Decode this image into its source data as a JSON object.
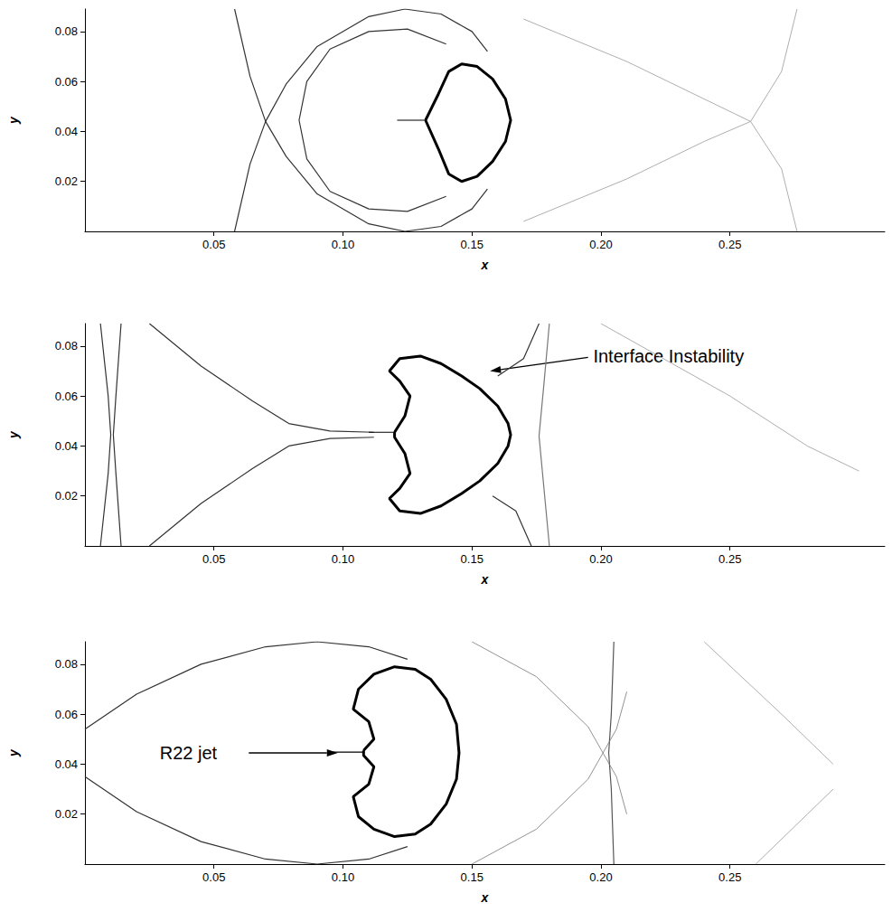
{
  "chart_data": [
    {
      "type": "line",
      "xlabel": "x",
      "ylabel": "y",
      "grid": false,
      "xlim": [
        0,
        0.31
      ],
      "ylim": [
        0,
        0.089
      ],
      "xticks": [
        0.05,
        {
          "value": 0.1,
          "label": "0.10"
        },
        0.15,
        {
          "value": 0.2,
          "label": "0.20"
        },
        0.25
      ],
      "yticks": [
        0.02,
        0.04,
        0.06,
        0.08
      ],
      "series": [
        {
          "color": "#333333",
          "line_style": "thin",
          "x": [
            0.058,
            0.064,
            0.07,
            0.078,
            0.09,
            0.11,
            0.124,
            0.138,
            0.15,
            0.156
          ],
          "values": [
            0.089,
            0.062,
            0.044,
            0.03,
            0.015,
            0.003,
            0.0,
            0.002,
            0.009,
            0.017
          ]
        },
        {
          "color": "#333333",
          "line_style": "thin",
          "x": [
            0.058,
            0.064,
            0.07,
            0.078,
            0.09,
            0.11,
            0.124,
            0.138,
            0.15,
            0.156
          ],
          "values": [
            0.0,
            0.027,
            0.044,
            0.059,
            0.074,
            0.086,
            0.089,
            0.087,
            0.08,
            0.072
          ]
        },
        {
          "color": "#333333",
          "line_style": "thin",
          "x": [
            0.14,
            0.125,
            0.11,
            0.095,
            0.086,
            0.083,
            0.086,
            0.095,
            0.11,
            0.125,
            0.14
          ],
          "values": [
            0.075,
            0.081,
            0.08,
            0.073,
            0.06,
            0.0445,
            0.029,
            0.016,
            0.009,
            0.008,
            0.014
          ]
        },
        {
          "color": "#000000",
          "line_style": "thick",
          "x": [
            0.132,
            0.137,
            0.141,
            0.146,
            0.152,
            0.158,
            0.163,
            0.165,
            0.163,
            0.158,
            0.152,
            0.146,
            0.141,
            0.137,
            0.132
          ],
          "values": [
            0.0445,
            0.055,
            0.064,
            0.067,
            0.066,
            0.061,
            0.053,
            0.0445,
            0.036,
            0.028,
            0.022,
            0.02,
            0.023,
            0.033,
            0.0445
          ]
        },
        {
          "color": "#000000",
          "line_style": "thin",
          "x": [
            0.121,
            0.132
          ],
          "values": [
            0.0445,
            0.0445
          ]
        },
        {
          "color": "#999999",
          "line_style": "faint",
          "x": [
            0.17,
            0.21,
            0.24,
            0.258,
            0.27,
            0.276
          ],
          "values": [
            0.085,
            0.068,
            0.053,
            0.044,
            0.025,
            0.0
          ]
        },
        {
          "color": "#999999",
          "line_style": "faint",
          "x": [
            0.17,
            0.21,
            0.24,
            0.258,
            0.27,
            0.276
          ],
          "values": [
            0.004,
            0.021,
            0.036,
            0.044,
            0.064,
            0.089
          ]
        }
      ],
      "annotations": []
    },
    {
      "type": "line",
      "xlabel": "x",
      "ylabel": "y",
      "grid": false,
      "xlim": [
        0,
        0.31
      ],
      "ylim": [
        0,
        0.089
      ],
      "xticks": [
        0.05,
        {
          "value": 0.1,
          "label": "0.10"
        },
        0.15,
        {
          "value": 0.2,
          "label": "0.20"
        },
        0.25
      ],
      "yticks": [
        0.02,
        0.04,
        0.06,
        0.08
      ],
      "series": [
        {
          "color": "#333333",
          "line_style": "thin",
          "x": [
            0.006,
            0.009,
            0.01,
            0.009,
            0.006
          ],
          "values": [
            0.089,
            0.06,
            0.0445,
            0.029,
            0.0
          ]
        },
        {
          "color": "#333333",
          "line_style": "thin",
          "x": [
            0.014,
            0.012,
            0.011,
            0.012,
            0.014
          ],
          "values": [
            0.089,
            0.06,
            0.0445,
            0.029,
            0.0
          ]
        },
        {
          "color": "#333333",
          "line_style": "thin",
          "x": [
            0.025,
            0.045,
            0.065,
            0.079,
            0.095,
            0.112
          ],
          "values": [
            0.089,
            0.072,
            0.058,
            0.049,
            0.046,
            0.0455
          ]
        },
        {
          "color": "#333333",
          "line_style": "thin",
          "x": [
            0.025,
            0.045,
            0.065,
            0.079,
            0.095,
            0.112
          ],
          "values": [
            0.0,
            0.017,
            0.031,
            0.04,
            0.043,
            0.0435
          ]
        },
        {
          "color": "#333333",
          "line_style": "thin",
          "x": [
            0.176,
            0.17,
            0.16
          ],
          "values": [
            0.089,
            0.075,
            0.068
          ]
        },
        {
          "color": "#333333",
          "line_style": "thin",
          "x": [
            0.173,
            0.167,
            0.158
          ],
          "values": [
            0.0,
            0.014,
            0.02
          ]
        },
        {
          "color": "#777777",
          "line_style": "thin",
          "x": [
            0.18,
            0.178,
            0.176,
            0.178,
            0.18
          ],
          "values": [
            0.089,
            0.066,
            0.044,
            0.022,
            0.0
          ]
        },
        {
          "color": "#000000",
          "line_style": "thick",
          "x": [
            0.12,
            0.124,
            0.126,
            0.122,
            0.118,
            0.122,
            0.13,
            0.138,
            0.146,
            0.153,
            0.16,
            0.164,
            0.165,
            0.164,
            0.16,
            0.153,
            0.146,
            0.138,
            0.13,
            0.122,
            0.118,
            0.122,
            0.126,
            0.124,
            0.12,
            0.12
          ],
          "values": [
            0.0455,
            0.052,
            0.06,
            0.066,
            0.07,
            0.075,
            0.076,
            0.073,
            0.068,
            0.063,
            0.056,
            0.049,
            0.0445,
            0.04,
            0.033,
            0.026,
            0.021,
            0.016,
            0.013,
            0.014,
            0.019,
            0.023,
            0.029,
            0.037,
            0.0435,
            0.0455
          ]
        },
        {
          "color": "#000000",
          "line_style": "thin",
          "x": [
            0.11,
            0.12
          ],
          "values": [
            0.0455,
            0.0455
          ]
        },
        {
          "color": "#999999",
          "line_style": "faint",
          "x": [
            0.2,
            0.25,
            0.28,
            0.3
          ],
          "values": [
            0.089,
            0.06,
            0.04,
            0.03
          ]
        }
      ],
      "annotations": [
        {
          "text": "Interface Instability",
          "x": 0.197,
          "y": 0.076,
          "arrow_from": [
            0.195,
            0.0755
          ],
          "arrow_to": [
            0.157,
            0.07
          ]
        }
      ]
    },
    {
      "type": "line",
      "xlabel": "x",
      "ylabel": "y",
      "grid": false,
      "xlim": [
        0,
        0.31
      ],
      "ylim": [
        0,
        0.089
      ],
      "xticks": [
        0.05,
        {
          "value": 0.1,
          "label": "0.10"
        },
        0.15,
        {
          "value": 0.2,
          "label": "0.20"
        },
        0.25
      ],
      "yticks": [
        0.02,
        0.04,
        0.06,
        0.08
      ],
      "series": [
        {
          "color": "#333333",
          "line_style": "thin",
          "x": [
            0.0,
            0.02,
            0.045,
            0.07,
            0.09,
            0.11,
            0.125
          ],
          "values": [
            0.054,
            0.068,
            0.08,
            0.087,
            0.089,
            0.087,
            0.082
          ]
        },
        {
          "color": "#333333",
          "line_style": "thin",
          "x": [
            0.0,
            0.02,
            0.045,
            0.07,
            0.09,
            0.11,
            0.125
          ],
          "values": [
            0.035,
            0.021,
            0.009,
            0.002,
            0.0,
            0.002,
            0.007
          ]
        },
        {
          "color": "#000000",
          "line_style": "thick",
          "x": [
            0.108,
            0.112,
            0.11,
            0.104,
            0.106,
            0.112,
            0.12,
            0.128,
            0.134,
            0.14,
            0.144,
            0.145,
            0.144,
            0.14,
            0.134,
            0.128,
            0.12,
            0.112,
            0.106,
            0.104,
            0.11,
            0.112,
            0.108,
            0.108
          ],
          "values": [
            0.0455,
            0.05,
            0.057,
            0.062,
            0.07,
            0.076,
            0.079,
            0.078,
            0.074,
            0.066,
            0.056,
            0.0445,
            0.034,
            0.024,
            0.016,
            0.012,
            0.011,
            0.014,
            0.019,
            0.027,
            0.032,
            0.039,
            0.0435,
            0.0455
          ]
        },
        {
          "color": "#000000",
          "line_style": "thin",
          "x": [
            0.096,
            0.108
          ],
          "values": [
            0.0448,
            0.0448
          ]
        },
        {
          "color": "#555555",
          "line_style": "thin",
          "x": [
            0.205,
            0.204,
            0.203,
            0.204,
            0.205
          ],
          "values": [
            0.089,
            0.06,
            0.0445,
            0.03,
            0.0
          ]
        },
        {
          "color": "#777777",
          "line_style": "faint",
          "x": [
            0.15,
            0.175,
            0.195,
            0.206,
            0.21
          ],
          "values": [
            0.089,
            0.075,
            0.055,
            0.035,
            0.02
          ]
        },
        {
          "color": "#777777",
          "line_style": "faint",
          "x": [
            0.15,
            0.175,
            0.195,
            0.206,
            0.21
          ],
          "values": [
            0.0,
            0.014,
            0.034,
            0.054,
            0.069
          ]
        },
        {
          "color": "#999999",
          "line_style": "faint",
          "x": [
            0.24,
            0.27,
            0.29
          ],
          "values": [
            0.089,
            0.06,
            0.04
          ]
        },
        {
          "color": "#999999",
          "line_style": "faint",
          "x": [
            0.26,
            0.28,
            0.29
          ],
          "values": [
            0.0,
            0.02,
            0.03
          ]
        }
      ],
      "annotations": [
        {
          "text": "R22 jet",
          "x": 0.029,
          "y": 0.0445,
          "arrow_from": [
            0.0635,
            0.0445
          ],
          "arrow_to": [
            0.098,
            0.0445
          ]
        }
      ]
    }
  ]
}
